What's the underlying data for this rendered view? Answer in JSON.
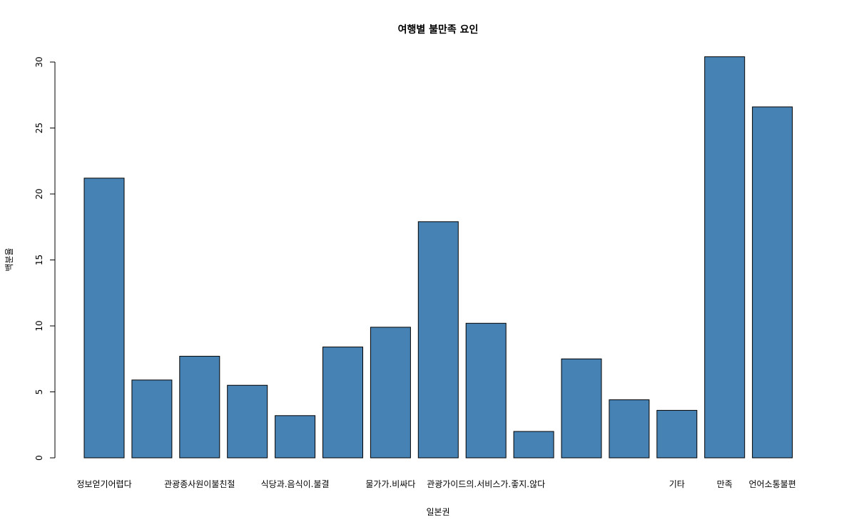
{
  "chart_data": {
    "type": "bar",
    "title": "여행별 불만족 요인",
    "xlabel": "일본권",
    "ylabel": "백분율",
    "ylim": [
      0,
      30
    ],
    "yticks": [
      0,
      5,
      10,
      15,
      20,
      25,
      30
    ],
    "bar_color": "#4682b4",
    "bar_border": "#000000",
    "grid": false,
    "categories": [
      "정보얻기어렵다",
      "",
      "관광종사원이불친절",
      "",
      "식당과.음식이.불결",
      "",
      "물가가.비싸다",
      "",
      "관광가이드의.서비스가.좋지.않다",
      "",
      "",
      "",
      "기타",
      "만족",
      "언어소통불편"
    ],
    "values": [
      21.2,
      5.9,
      7.7,
      5.5,
      3.2,
      8.4,
      9.9,
      17.9,
      10.2,
      2.0,
      7.5,
      4.4,
      3.6,
      30.4,
      26.6
    ]
  }
}
